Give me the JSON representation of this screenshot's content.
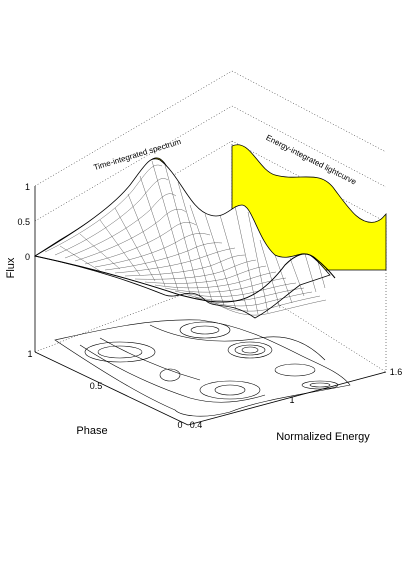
{
  "chart_data": {
    "type": "surface",
    "zlabel": "Flux",
    "ylabel": "Phase",
    "xlabel": "Normalized Energy",
    "x_ticks": [
      "0.4",
      "1",
      "1.6"
    ],
    "y_ticks": [
      "0",
      "0.5",
      "1"
    ],
    "z_ticks": [
      "0",
      "0.5",
      "1"
    ],
    "xlim": [
      0.4,
      1.6
    ],
    "ylim": [
      0,
      1
    ],
    "zlim": [
      0,
      1
    ],
    "projection_labels": {
      "spectrum": "Time-integrated spectrum",
      "lightcurve": "Energy-integrated lightcurve"
    },
    "colors": {
      "projection_fill": "#ffff00",
      "mesh": "#000000",
      "surface": "#ffffff"
    },
    "grid": true,
    "has_contour_floor": true,
    "spectrum_profile": {
      "energy": [
        0.4,
        0.6,
        0.8,
        1.0,
        1.2,
        1.4,
        1.6
      ],
      "flux": [
        0.0,
        0.15,
        0.55,
        0.95,
        0.55,
        0.2,
        0.05
      ]
    },
    "lightcurve_profile": {
      "phase": [
        0.0,
        0.2,
        0.4,
        0.6,
        0.8,
        1.0
      ],
      "flux": [
        0.5,
        0.65,
        0.8,
        0.7,
        0.85,
        0.75
      ]
    }
  }
}
